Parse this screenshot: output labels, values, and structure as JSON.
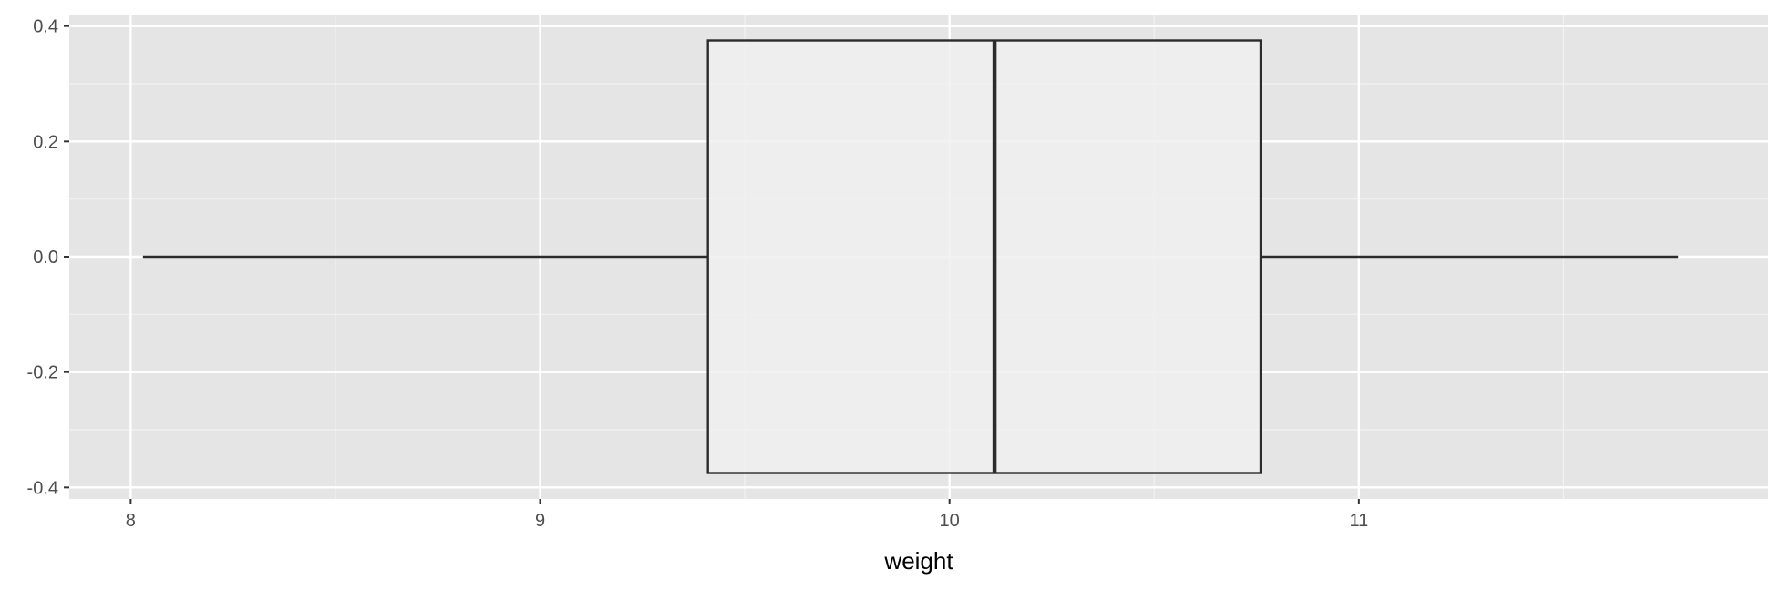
{
  "chart_data": {
    "type": "boxplot",
    "title": "",
    "xlabel": "weight",
    "ylabel": "",
    "xlim": [
      7.85,
      12.0
    ],
    "ylim": [
      -0.42,
      0.42
    ],
    "x_ticks": [
      8,
      9,
      10,
      11
    ],
    "x_tick_labels": [
      "8",
      "9",
      "10",
      "11"
    ],
    "y_ticks": [
      0.4,
      0.2,
      0.0,
      -0.2,
      -0.4
    ],
    "y_tick_labels": [
      "0.4",
      "0.2",
      "0.0",
      "-0.2",
      "-0.4"
    ],
    "grid": true,
    "box": {
      "whisker_low": 8.03,
      "q1": 9.41,
      "median": 10.11,
      "q3": 10.76,
      "whisker_high": 11.78,
      "y_center": 0.0,
      "half_width": 0.375
    },
    "colors": {
      "panel_background": "#e5e5e5",
      "grid_major": "#ffffff",
      "grid_minor": "#f2f2f2",
      "box_fill": "#f0f0f0",
      "box_stroke": "#2b2b2b",
      "tick_text": "#4d4d4d",
      "axis_title": "#000000"
    }
  }
}
